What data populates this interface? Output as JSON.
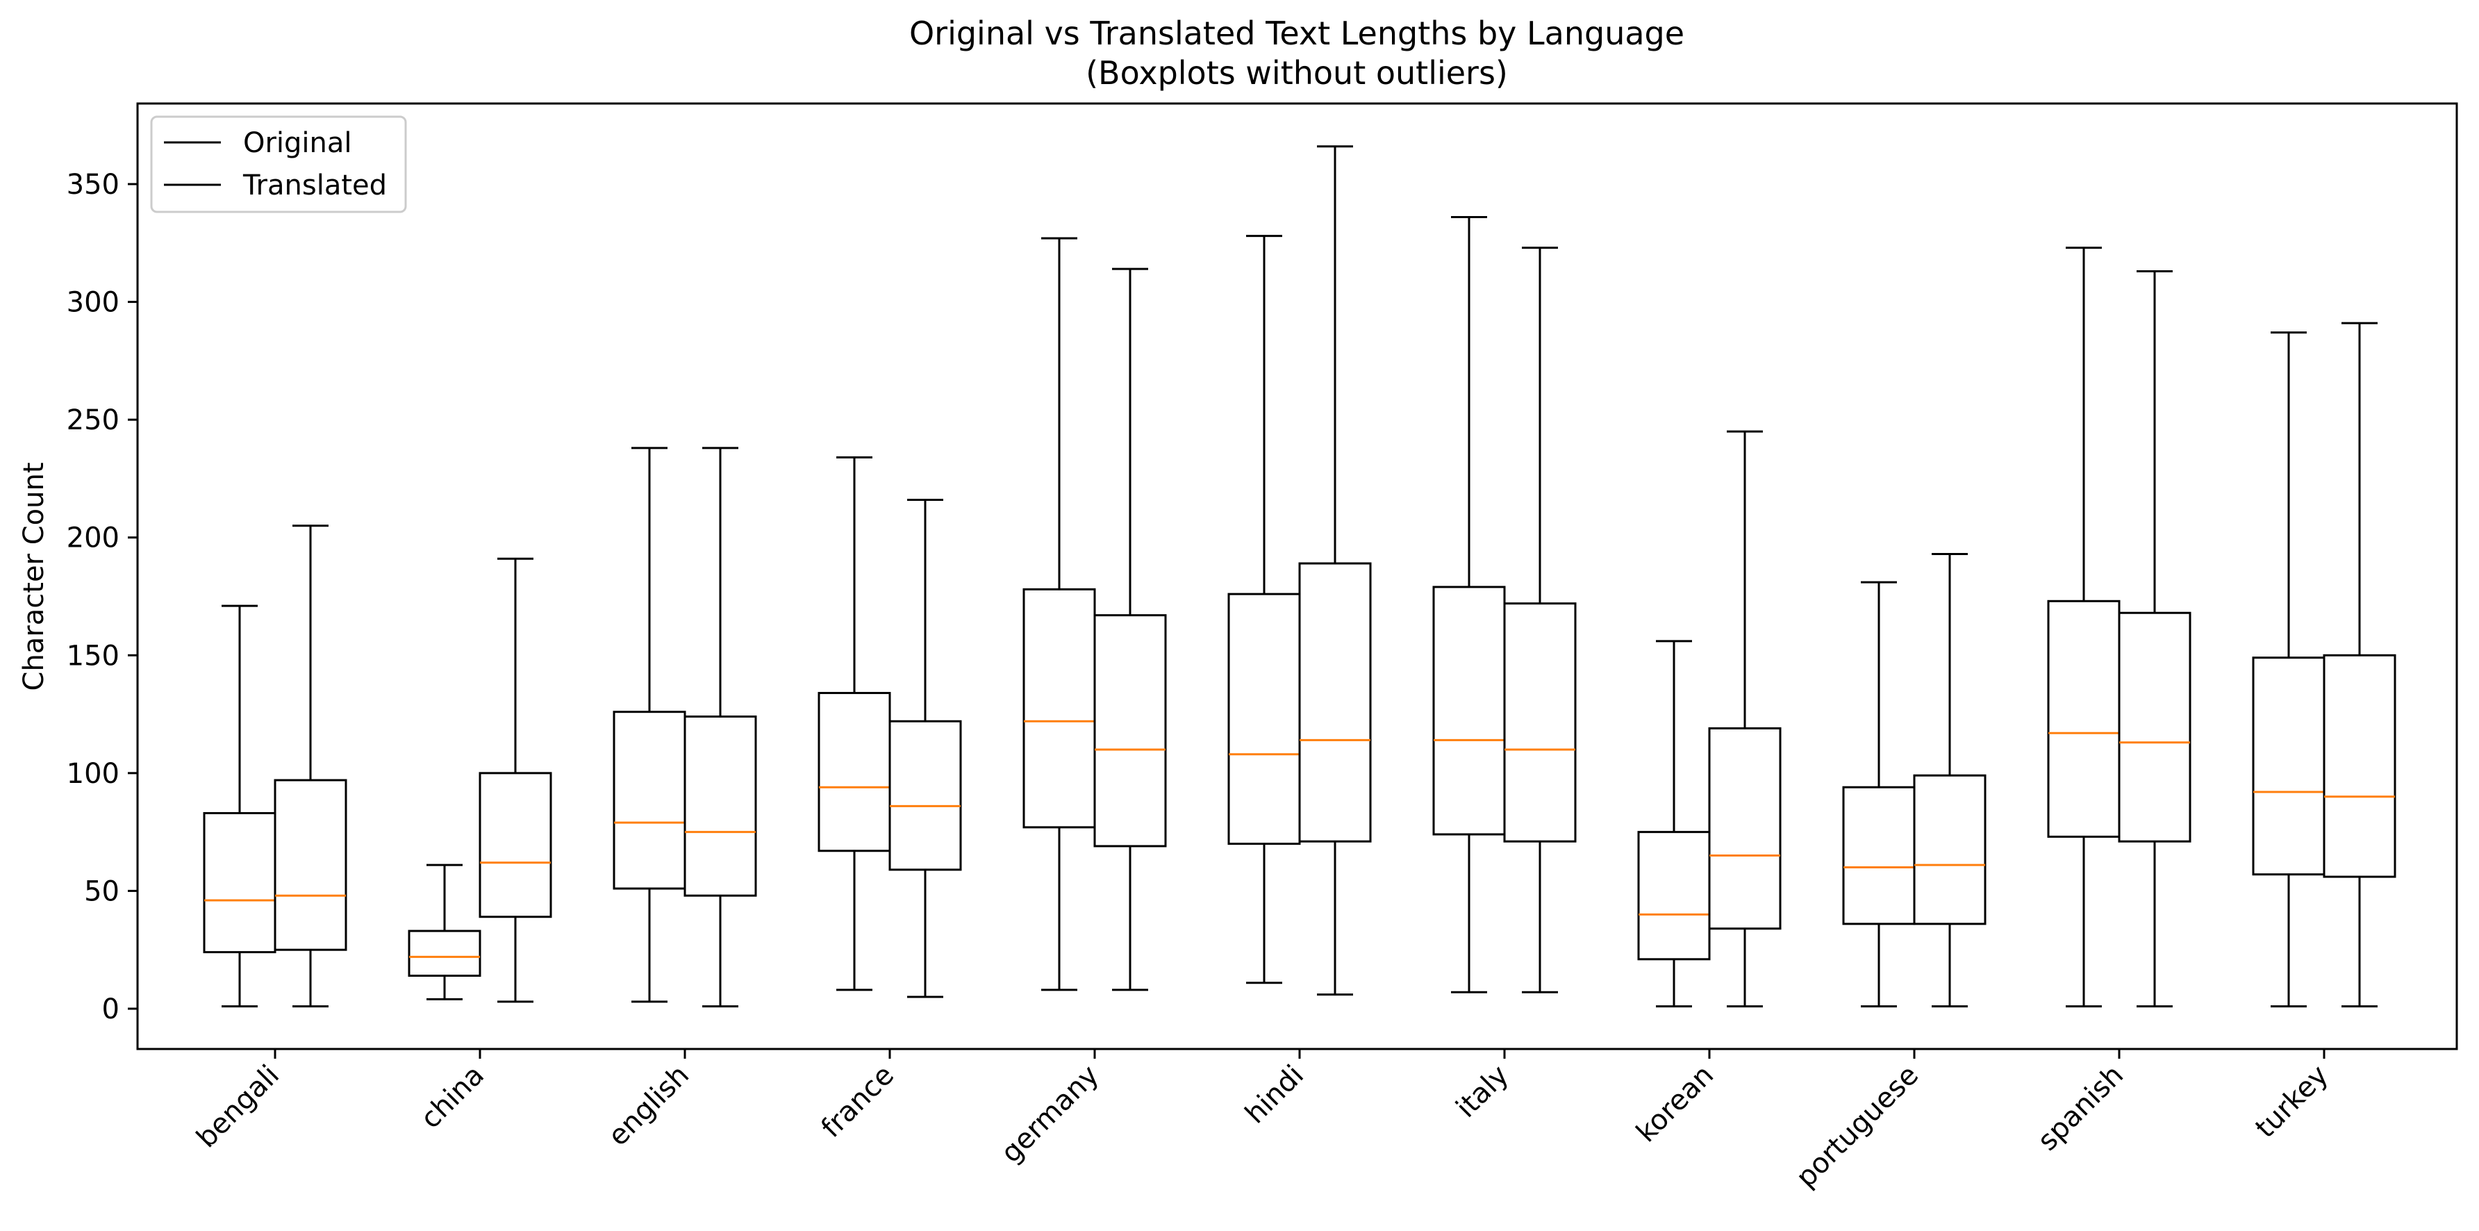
{
  "chart_data": {
    "type": "boxplot",
    "title": "Original vs Translated Text Lengths by Language",
    "subtitle": "(Boxplots without outliers)",
    "xlabel": "",
    "ylabel": "Character Count",
    "ylim": [
      -17,
      383
    ],
    "yticks": [
      0,
      50,
      100,
      150,
      200,
      250,
      300,
      350
    ],
    "categories": [
      "bengali",
      "china",
      "english",
      "france",
      "germany",
      "hindi",
      "italy",
      "korean",
      "portuguese",
      "spanish",
      "turkey"
    ],
    "legend": {
      "position": "top-left",
      "entries": [
        "Original",
        "Translated"
      ]
    },
    "colors": {
      "box": "#000000",
      "median": "#ff7f0e"
    },
    "series": [
      {
        "name": "Original",
        "boxes": [
          {
            "whislo": 1,
            "q1": 24,
            "med": 46,
            "q3": 83,
            "whishi": 171
          },
          {
            "whislo": 4,
            "q1": 14,
            "med": 22,
            "q3": 33,
            "whishi": 61
          },
          {
            "whislo": 3,
            "q1": 51,
            "med": 79,
            "q3": 126,
            "whishi": 238
          },
          {
            "whislo": 8,
            "q1": 67,
            "med": 94,
            "q3": 134,
            "whishi": 234
          },
          {
            "whislo": 8,
            "q1": 77,
            "med": 122,
            "q3": 178,
            "whishi": 327
          },
          {
            "whislo": 11,
            "q1": 70,
            "med": 108,
            "q3": 176,
            "whishi": 328
          },
          {
            "whislo": 7,
            "q1": 74,
            "med": 114,
            "q3": 179,
            "whishi": 336
          },
          {
            "whislo": 1,
            "q1": 21,
            "med": 40,
            "q3": 75,
            "whishi": 156
          },
          {
            "whislo": 1,
            "q1": 36,
            "med": 60,
            "q3": 94,
            "whishi": 181
          },
          {
            "whislo": 1,
            "q1": 73,
            "med": 117,
            "q3": 173,
            "whishi": 323
          },
          {
            "whislo": 1,
            "q1": 57,
            "med": 92,
            "q3": 149,
            "whishi": 287
          }
        ]
      },
      {
        "name": "Translated",
        "boxes": [
          {
            "whislo": 1,
            "q1": 25,
            "med": 48,
            "q3": 97,
            "whishi": 205
          },
          {
            "whislo": 3,
            "q1": 39,
            "med": 62,
            "q3": 100,
            "whishi": 191
          },
          {
            "whislo": 1,
            "q1": 48,
            "med": 75,
            "q3": 124,
            "whishi": 238
          },
          {
            "whislo": 5,
            "q1": 59,
            "med": 86,
            "q3": 122,
            "whishi": 216
          },
          {
            "whislo": 8,
            "q1": 69,
            "med": 110,
            "q3": 167,
            "whishi": 314
          },
          {
            "whislo": 6,
            "q1": 71,
            "med": 114,
            "q3": 189,
            "whishi": 366
          },
          {
            "whislo": 7,
            "q1": 71,
            "med": 110,
            "q3": 172,
            "whishi": 323
          },
          {
            "whislo": 1,
            "q1": 34,
            "med": 65,
            "q3": 119,
            "whishi": 245
          },
          {
            "whislo": 1,
            "q1": 36,
            "med": 61,
            "q3": 99,
            "whishi": 193
          },
          {
            "whislo": 1,
            "q1": 71,
            "med": 113,
            "q3": 168,
            "whishi": 313
          },
          {
            "whislo": 1,
            "q1": 56,
            "med": 90,
            "q3": 150,
            "whishi": 291
          }
        ]
      }
    ]
  }
}
